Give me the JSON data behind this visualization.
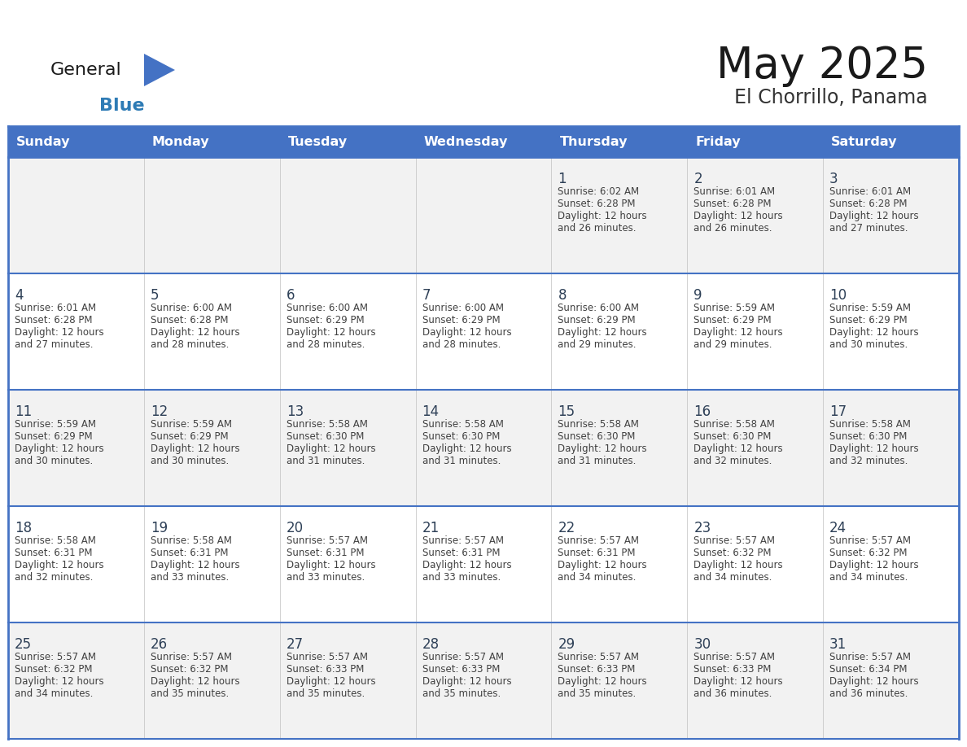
{
  "title": "May 2025",
  "subtitle": "El Chorrillo, Panama",
  "days_of_week": [
    "Sunday",
    "Monday",
    "Tuesday",
    "Wednesday",
    "Thursday",
    "Friday",
    "Saturday"
  ],
  "header_bg": "#4472C4",
  "header_text": "#FFFFFF",
  "cell_bg_odd": "#F2F2F2",
  "cell_bg_even": "#FFFFFF",
  "border_color": "#4472C4",
  "day_num_color": "#2E4057",
  "text_color": "#404040",
  "logo_black": "#1a1a1a",
  "logo_blue_text": "#2E7BB5",
  "logo_triangle": "#4472C4",
  "calendar_data": [
    [
      null,
      null,
      null,
      null,
      {
        "day": "1",
        "sunrise": "6:02 AM",
        "sunset": "6:28 PM",
        "daylight": "26 minutes."
      },
      {
        "day": "2",
        "sunrise": "6:01 AM",
        "sunset": "6:28 PM",
        "daylight": "26 minutes."
      },
      {
        "day": "3",
        "sunrise": "6:01 AM",
        "sunset": "6:28 PM",
        "daylight": "27 minutes."
      }
    ],
    [
      {
        "day": "4",
        "sunrise": "6:01 AM",
        "sunset": "6:28 PM",
        "daylight": "27 minutes."
      },
      {
        "day": "5",
        "sunrise": "6:00 AM",
        "sunset": "6:28 PM",
        "daylight": "28 minutes."
      },
      {
        "day": "6",
        "sunrise": "6:00 AM",
        "sunset": "6:29 PM",
        "daylight": "28 minutes."
      },
      {
        "day": "7",
        "sunrise": "6:00 AM",
        "sunset": "6:29 PM",
        "daylight": "28 minutes."
      },
      {
        "day": "8",
        "sunrise": "6:00 AM",
        "sunset": "6:29 PM",
        "daylight": "29 minutes."
      },
      {
        "day": "9",
        "sunrise": "5:59 AM",
        "sunset": "6:29 PM",
        "daylight": "29 minutes."
      },
      {
        "day": "10",
        "sunrise": "5:59 AM",
        "sunset": "6:29 PM",
        "daylight": "30 minutes."
      }
    ],
    [
      {
        "day": "11",
        "sunrise": "5:59 AM",
        "sunset": "6:29 PM",
        "daylight": "30 minutes."
      },
      {
        "day": "12",
        "sunrise": "5:59 AM",
        "sunset": "6:29 PM",
        "daylight": "30 minutes."
      },
      {
        "day": "13",
        "sunrise": "5:58 AM",
        "sunset": "6:30 PM",
        "daylight": "31 minutes."
      },
      {
        "day": "14",
        "sunrise": "5:58 AM",
        "sunset": "6:30 PM",
        "daylight": "31 minutes."
      },
      {
        "day": "15",
        "sunrise": "5:58 AM",
        "sunset": "6:30 PM",
        "daylight": "31 minutes."
      },
      {
        "day": "16",
        "sunrise": "5:58 AM",
        "sunset": "6:30 PM",
        "daylight": "32 minutes."
      },
      {
        "day": "17",
        "sunrise": "5:58 AM",
        "sunset": "6:30 PM",
        "daylight": "32 minutes."
      }
    ],
    [
      {
        "day": "18",
        "sunrise": "5:58 AM",
        "sunset": "6:31 PM",
        "daylight": "32 minutes."
      },
      {
        "day": "19",
        "sunrise": "5:58 AM",
        "sunset": "6:31 PM",
        "daylight": "33 minutes."
      },
      {
        "day": "20",
        "sunrise": "5:57 AM",
        "sunset": "6:31 PM",
        "daylight": "33 minutes."
      },
      {
        "day": "21",
        "sunrise": "5:57 AM",
        "sunset": "6:31 PM",
        "daylight": "33 minutes."
      },
      {
        "day": "22",
        "sunrise": "5:57 AM",
        "sunset": "6:31 PM",
        "daylight": "34 minutes."
      },
      {
        "day": "23",
        "sunrise": "5:57 AM",
        "sunset": "6:32 PM",
        "daylight": "34 minutes."
      },
      {
        "day": "24",
        "sunrise": "5:57 AM",
        "sunset": "6:32 PM",
        "daylight": "34 minutes."
      }
    ],
    [
      {
        "day": "25",
        "sunrise": "5:57 AM",
        "sunset": "6:32 PM",
        "daylight": "34 minutes."
      },
      {
        "day": "26",
        "sunrise": "5:57 AM",
        "sunset": "6:32 PM",
        "daylight": "35 minutes."
      },
      {
        "day": "27",
        "sunrise": "5:57 AM",
        "sunset": "6:33 PM",
        "daylight": "35 minutes."
      },
      {
        "day": "28",
        "sunrise": "5:57 AM",
        "sunset": "6:33 PM",
        "daylight": "35 minutes."
      },
      {
        "day": "29",
        "sunrise": "5:57 AM",
        "sunset": "6:33 PM",
        "daylight": "35 minutes."
      },
      {
        "day": "30",
        "sunrise": "5:57 AM",
        "sunset": "6:33 PM",
        "daylight": "36 minutes."
      },
      {
        "day": "31",
        "sunrise": "5:57 AM",
        "sunset": "6:34 PM",
        "daylight": "36 minutes."
      }
    ]
  ]
}
